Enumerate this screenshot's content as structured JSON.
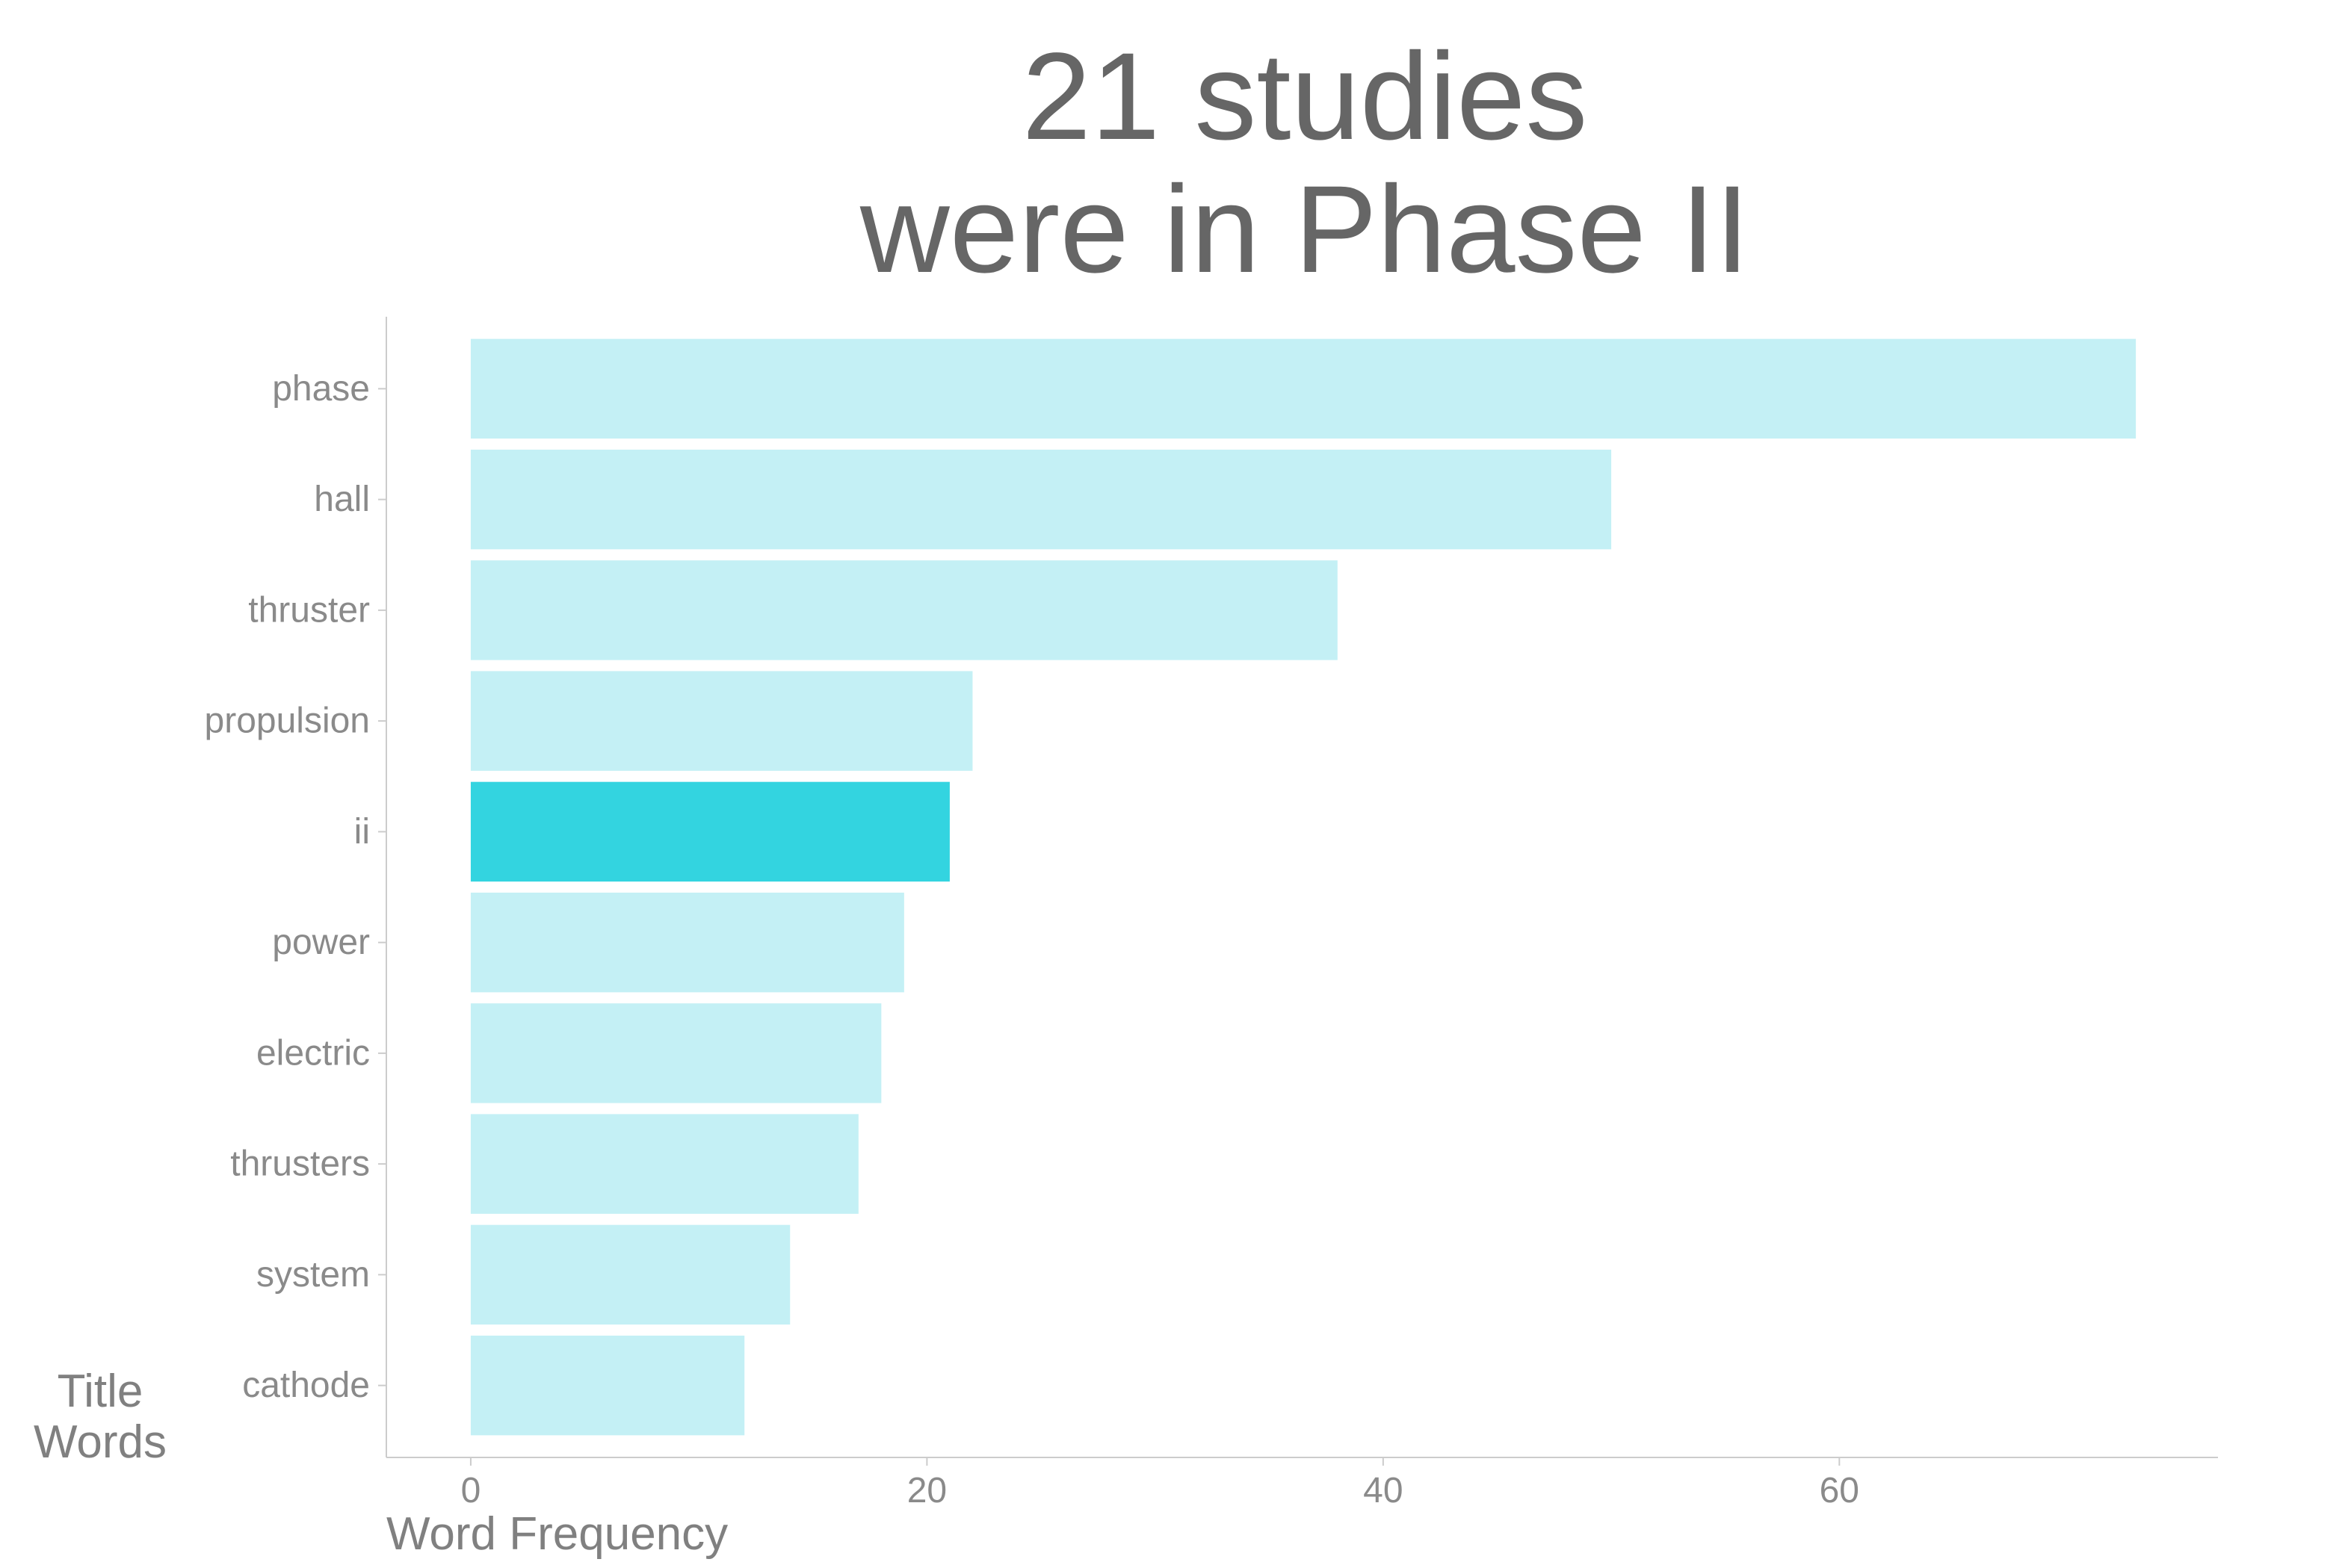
{
  "chart_data": {
    "type": "bar",
    "orientation": "horizontal",
    "title_lines": [
      "21 studies",
      "were in Phase II"
    ],
    "xlabel": "Word Frequency",
    "ylabel_lines": [
      "Title",
      "Words"
    ],
    "categories": [
      "phase",
      "hall",
      "thruster",
      "propulsion",
      "ii",
      "power",
      "electric",
      "thrusters",
      "system",
      "cathode"
    ],
    "values": [
      73,
      50,
      38,
      22,
      21,
      19,
      18,
      17,
      14,
      12
    ],
    "highlight": "ii",
    "xlim": [
      -3.7,
      76.6
    ],
    "xticks": [
      0,
      20,
      40,
      60
    ],
    "grid": false,
    "colors": {
      "bar": "#c4f0f5",
      "highlight": "#33d4e0",
      "axis": "#cccccc",
      "title": "#666666",
      "tick_label": "#8a8a8a",
      "axis_title": "#808080"
    }
  }
}
